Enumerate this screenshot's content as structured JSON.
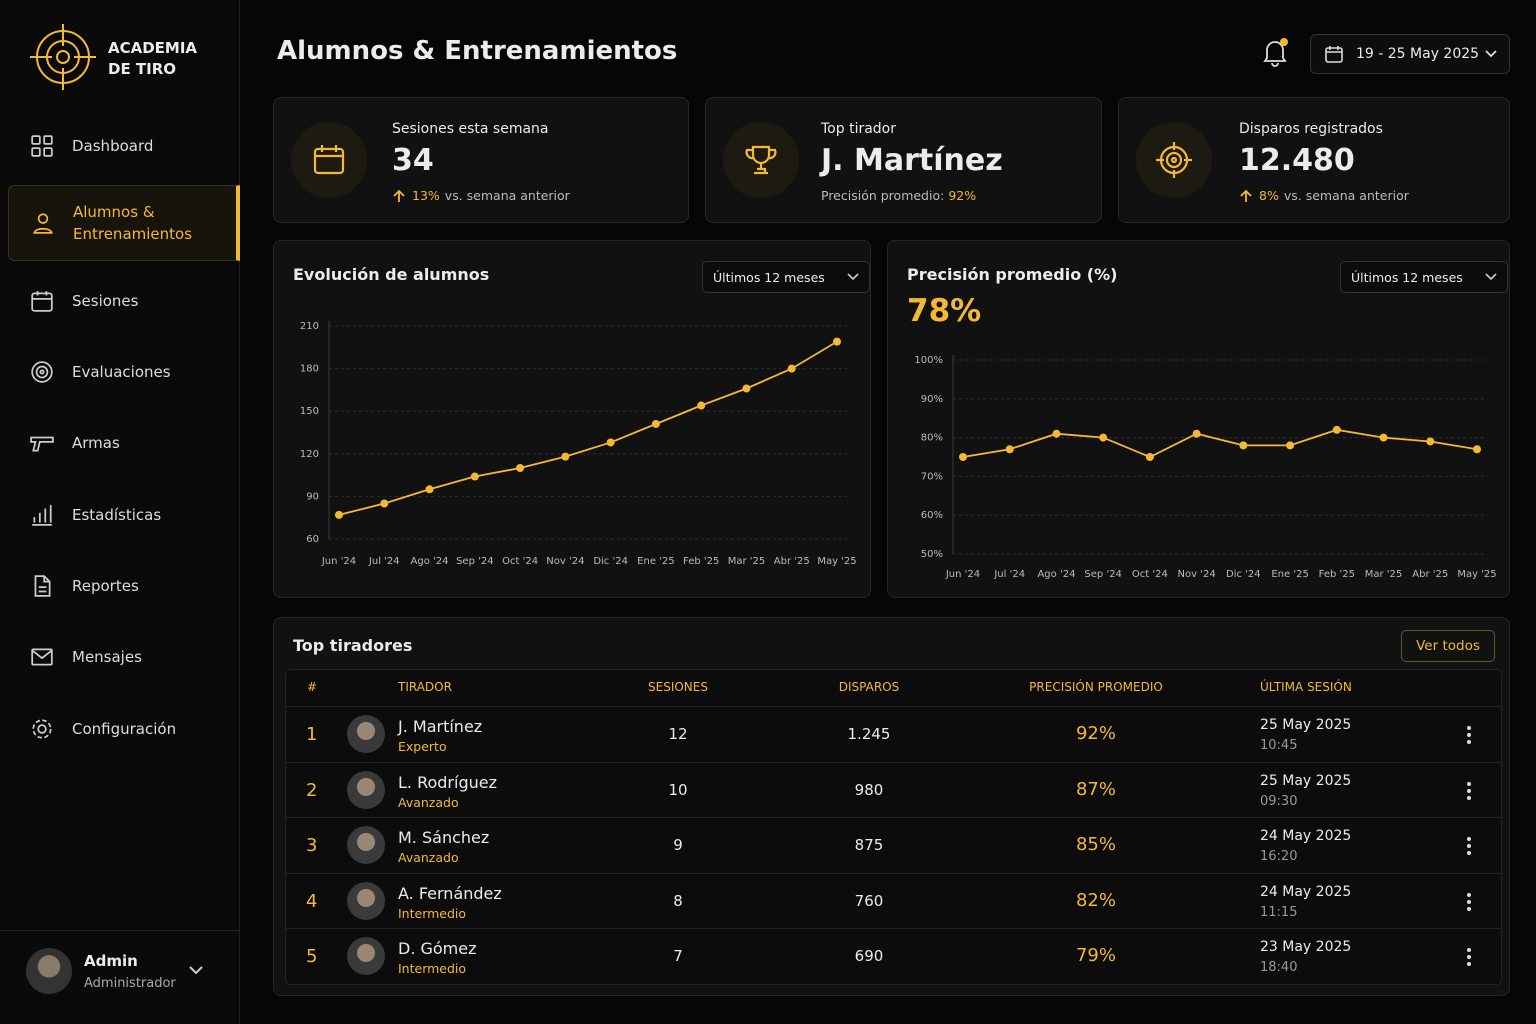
{
  "sidebar": {
    "brand": "ACADEMIA DE TIRO",
    "nav": [
      "Dashboard",
      "Alumnos & Entrenamientos",
      "Sesiones",
      "Evaluaciones",
      "Armas",
      "Estadísticas",
      "Reportes",
      "Mensajes",
      "Configuración"
    ],
    "user": {
      "name": "Admin",
      "role": "Administrador"
    }
  },
  "header": {
    "title": "Alumnos & Entrenamientos",
    "date_range": "19 - 25 May 2025"
  },
  "kpis": [
    {
      "label": "Sesiones esta semana",
      "value": "34",
      "change": "13%",
      "note": "vs. semana anterior"
    },
    {
      "label": "Top tirador",
      "value": "J. Martínez",
      "note": "Precisión promedio:",
      "change": "92%"
    },
    {
      "label": "Disparos registrados",
      "value": "12.480",
      "change": "8%",
      "note": "vs. semana anterior"
    }
  ],
  "chart_data": [
    {
      "type": "line",
      "title": "Evolución de alumnos",
      "filter": "Últimos 12 meses",
      "categories": [
        "Jun '24",
        "Jul '24",
        "Ago '24",
        "Sep '24",
        "Oct '24",
        "Nov '24",
        "Dic '24",
        "Ene '25",
        "Feb '25",
        "Mar '25",
        "Abr '25",
        "May '25"
      ],
      "values": [
        77,
        85,
        95,
        104,
        110,
        118,
        128,
        141,
        154,
        166,
        180,
        199
      ],
      "color": "#f4b934",
      "ylim": [
        60,
        210
      ],
      "yticks": [
        60,
        90,
        120,
        150,
        180,
        210
      ],
      "grid": true
    },
    {
      "type": "line",
      "title": "Precisión promedio (%)",
      "headline": "78%",
      "filter": "Últimos 12 meses",
      "categories": [
        "Jun '24",
        "Jul '24",
        "Ago '24",
        "Sep '24",
        "Oct '24",
        "Nov '24",
        "Dic '24",
        "Ene '25",
        "Feb '25",
        "Mar '25",
        "Abr '25",
        "May '25"
      ],
      "values": [
        75,
        77,
        81,
        80,
        75,
        81,
        78,
        78,
        82,
        80,
        79,
        77
      ],
      "color": "#f4b934",
      "ylim": [
        50,
        100
      ],
      "yticks": [
        {
          "value": 50,
          "label": "50%"
        },
        {
          "value": 60,
          "label": "60%"
        },
        {
          "value": 70,
          "label": "70%"
        },
        {
          "value": 80,
          "label": "80%"
        },
        {
          "value": 90,
          "label": "90%"
        },
        {
          "value": 100,
          "label": "100%"
        }
      ],
      "grid": true
    }
  ],
  "table": {
    "title": "Top tiradores",
    "action": "Ver todos",
    "columns": [
      "#",
      "TIRADOR",
      "SESIONES",
      "DISPAROS",
      "PRECISIÓN PROMEDIO",
      "ÚLTIMA SESIÓN"
    ],
    "rows": [
      [
        "1",
        "J. Martínez",
        "Experto",
        "12",
        "1.245",
        "92%",
        "25 May 2025",
        "10:45"
      ],
      [
        "2",
        "L. Rodríguez",
        "Avanzado",
        "10",
        "980",
        "87%",
        "25 May 2025",
        "09:30"
      ],
      [
        "3",
        "M. Sánchez",
        "Avanzado",
        "9",
        "875",
        "85%",
        "24 May 2025",
        "16:20"
      ],
      [
        "4",
        "A. Fernández",
        "Intermedio",
        "8",
        "760",
        "82%",
        "24 May 2025",
        "11:15"
      ],
      [
        "5",
        "D. Gómez",
        "Intermedio",
        "7",
        "690",
        "79%",
        "23 May 2025",
        "18:40"
      ]
    ]
  }
}
